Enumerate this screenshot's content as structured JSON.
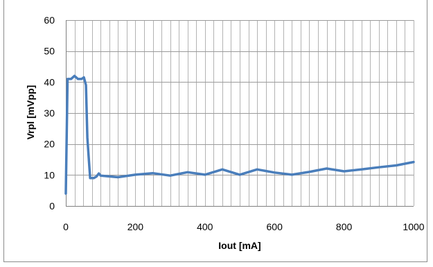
{
  "chart_data": {
    "type": "line",
    "title": "",
    "xlabel": "Iout [mA]",
    "ylabel": "Vrpl [mVpp]",
    "xlim": [
      0,
      1000
    ],
    "ylim": [
      0,
      60
    ],
    "x_ticks": [
      0,
      200,
      400,
      600,
      800,
      1000
    ],
    "y_ticks": [
      0,
      10,
      20,
      30,
      40,
      50,
      60
    ],
    "x_grid_step": 25,
    "grid": true,
    "legend": "none",
    "series": [
      {
        "color": "#4a7ebb",
        "x": [
          0,
          5,
          15,
          25,
          35,
          45,
          52,
          58,
          62,
          70,
          80,
          88,
          95,
          100,
          150,
          200,
          250,
          300,
          350,
          400,
          450,
          500,
          550,
          600,
          650,
          700,
          750,
          800,
          850,
          900,
          950,
          1000
        ],
        "y": [
          4,
          41,
          41,
          42,
          41,
          41,
          41.5,
          39,
          22,
          9,
          9,
          9.5,
          10.5,
          9.8,
          9.3,
          10.1,
          10.6,
          9.8,
          10.9,
          10.1,
          11.8,
          10.1,
          11.8,
          10.8,
          10.1,
          11.0,
          12.1,
          11.2,
          11.8,
          12.5,
          13.1,
          14.2
        ]
      }
    ]
  }
}
